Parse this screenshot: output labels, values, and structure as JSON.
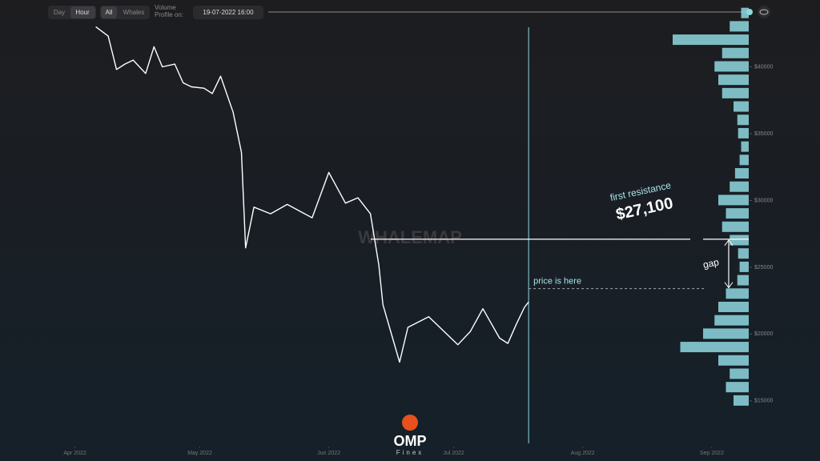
{
  "ui": {
    "toggle1": [
      "Day",
      "Hour"
    ],
    "toggle2": [
      "All",
      "Whales"
    ],
    "profile_label": "Volume Profile on:",
    "profile_date": "19-07-2022 16:00",
    "watermark": "WHALEMAP",
    "logo": "OMP",
    "logo_sub": "Finex"
  },
  "chart_data": {
    "type": "line",
    "x": [
      "2022-04-06",
      "2022-04-09",
      "2022-04-11",
      "2022-04-13",
      "2022-04-15",
      "2022-04-18",
      "2022-04-20",
      "2022-04-22",
      "2022-04-25",
      "2022-04-27",
      "2022-04-29",
      "2022-05-02",
      "2022-05-04",
      "2022-05-06",
      "2022-05-09",
      "2022-05-11",
      "2022-05-12",
      "2022-05-14",
      "2022-05-18",
      "2022-05-22",
      "2022-05-28",
      "2022-06-01",
      "2022-06-05",
      "2022-06-08",
      "2022-06-11",
      "2022-06-13",
      "2022-06-14",
      "2022-06-18",
      "2022-06-20",
      "2022-06-25",
      "2022-06-30",
      "2022-07-02",
      "2022-07-05",
      "2022-07-08",
      "2022-07-12",
      "2022-07-14",
      "2022-07-16",
      "2022-07-18",
      "2022-07-19"
    ],
    "series": [
      {
        "name": "Price",
        "color": "#ffffff",
        "values": [
          43000,
          42300,
          39800,
          40200,
          40500,
          39500,
          41500,
          40000,
          40200,
          38800,
          38500,
          38400,
          38000,
          39300,
          36600,
          33600,
          26450,
          29500,
          29000,
          29700,
          28700,
          32100,
          29800,
          30200,
          29000,
          25200,
          22200,
          17900,
          20500,
          21300,
          19800,
          19200,
          20200,
          21900,
          19700,
          19300,
          20700,
          22000,
          22400
        ]
      }
    ],
    "xlim": [
      "2022-03-14",
      "2022-09-27"
    ],
    "xticks": [
      {
        "value": "2022-04-01",
        "label": "Apr 2022"
      },
      {
        "value": "2022-05-01",
        "label": "May 2022"
      },
      {
        "value": "2022-06-01",
        "label": "Jun 2022"
      },
      {
        "value": "2022-07-01",
        "label": "Jul 2022"
      },
      {
        "value": "2022-08-01",
        "label": "Aug 2022"
      },
      {
        "value": "2022-09-01",
        "label": "Sep 2022"
      }
    ],
    "ylim": [
      10500,
      45000
    ],
    "yticks": [
      {
        "value": 15000,
        "label": "$15000"
      },
      {
        "value": 20000,
        "label": "$20000"
      },
      {
        "value": 25000,
        "label": "$25000"
      },
      {
        "value": 30000,
        "label": "$30000"
      },
      {
        "value": 35000,
        "label": "$35000"
      },
      {
        "value": 40000,
        "label": "$40000"
      }
    ],
    "current_date": "2022-07-19",
    "volume_profile": {
      "prices": [
        15000,
        16000,
        17000,
        18000,
        19000,
        20000,
        21000,
        22000,
        23000,
        24000,
        25000,
        26000,
        27000,
        28000,
        29000,
        30000,
        31000,
        32000,
        33000,
        34000,
        35000,
        36000,
        37000,
        38000,
        39000,
        40000,
        41000,
        42000,
        43000,
        44000
      ],
      "values": [
        20,
        30,
        25,
        40,
        90,
        60,
        45,
        40,
        30,
        15,
        12,
        14,
        25,
        35,
        30,
        40,
        25,
        18,
        12,
        10,
        14,
        15,
        20,
        35,
        40,
        45,
        35,
        100,
        25,
        10
      ],
      "color": "#8fd8e0"
    },
    "resistance": {
      "label": "first resistance",
      "value": 27100,
      "value_label": "$27,100"
    },
    "price_note": {
      "label": "price is here",
      "value": 23400
    },
    "gap_label": "gap"
  }
}
